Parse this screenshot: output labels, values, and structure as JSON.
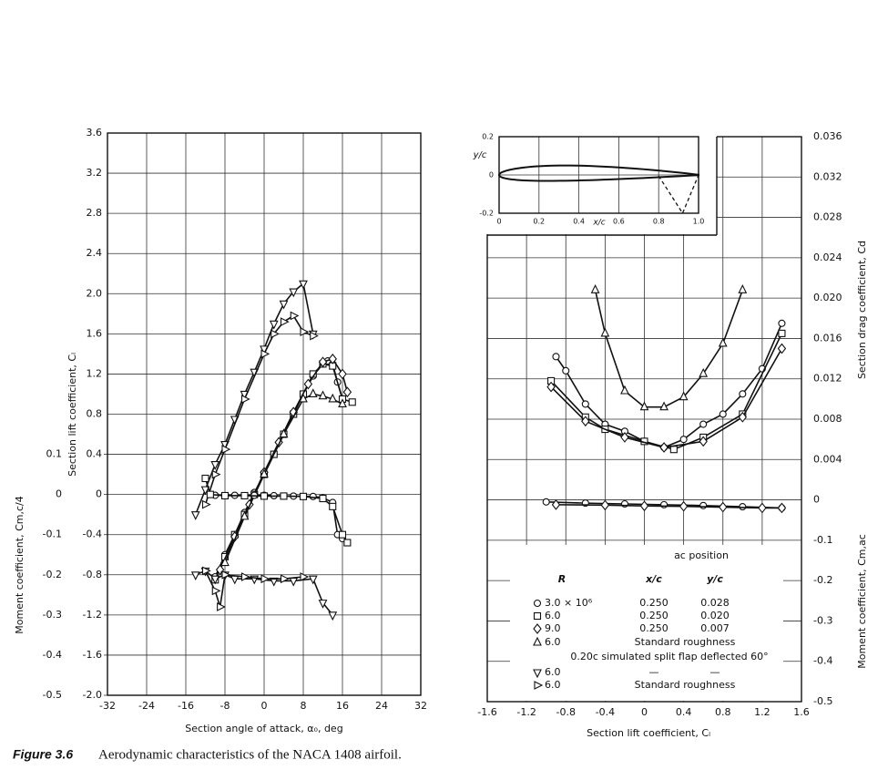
{
  "chart_data": [
    {
      "type": "line",
      "xlabel": "Section angle of attack, α₀, deg",
      "ylabel": "Section lift coefficient, Cₗ",
      "y2label": "Moment coefficient, Cm,c/4",
      "xlim": [
        -32,
        32
      ],
      "xticks": [
        -32,
        -24,
        -16,
        -8,
        0,
        8,
        16,
        24,
        32
      ],
      "ylim": [
        -2,
        3.6
      ],
      "yticks": [
        {
          "value": -2,
          "label": "-2.0"
        },
        -1.6,
        -1.2,
        -0.8,
        -0.4,
        0,
        0.4,
        0.8,
        1.2,
        1.6,
        {
          "value": 2,
          "label": "2.0"
        },
        2.4,
        2.8,
        3.2,
        3.6
      ],
      "y2lim": [
        -0.5,
        0.9
      ],
      "y2ticks": [
        0.1,
        0,
        -0.1,
        -0.2,
        -0.3,
        -0.4,
        -0.5
      ],
      "grid": true,
      "series": [
        {
          "marker": "circle",
          "color": "#111",
          "x": [
            -10,
            -8,
            -6,
            -4,
            -2,
            0,
            2,
            4,
            6,
            8,
            10,
            12,
            13,
            14,
            15,
            16
          ],
          "values": [
            -0.82,
            -0.6,
            -0.4,
            -0.18,
            0.02,
            0.2,
            0.4,
            0.6,
            0.8,
            1.0,
            1.18,
            1.3,
            1.33,
            1.3,
            1.12,
            0.95
          ]
        },
        {
          "marker": "square",
          "color": "#111",
          "x": [
            -10,
            -8,
            -6,
            -4,
            -2,
            0,
            2,
            4,
            6,
            8,
            10,
            12,
            14,
            16,
            18
          ],
          "values": [
            -0.85,
            -0.62,
            -0.4,
            -0.2,
            0,
            0.2,
            0.4,
            0.6,
            0.8,
            1.0,
            1.2,
            1.3,
            1.28,
            0.95,
            0.92
          ]
        },
        {
          "marker": "diamond",
          "color": "#111",
          "x": [
            -9,
            -6,
            -3,
            0,
            3,
            6,
            9,
            12,
            14,
            16,
            17
          ],
          "values": [
            -0.75,
            -0.42,
            -0.1,
            0.22,
            0.52,
            0.82,
            1.1,
            1.32,
            1.35,
            1.2,
            1.02
          ]
        },
        {
          "marker": "tri-up",
          "color": "#111",
          "x": [
            -8,
            -4,
            0,
            4,
            8,
            10,
            12,
            14,
            16
          ],
          "values": [
            -0.68,
            -0.22,
            0.2,
            0.6,
            0.95,
            1.0,
            0.98,
            0.95,
            0.9
          ]
        },
        {
          "marker": "tri-down",
          "color": "#111",
          "x": [
            -14,
            -12,
            -10,
            -8,
            -6,
            -4,
            -2,
            0,
            2,
            4,
            6,
            8,
            10
          ],
          "values": [
            -0.2,
            0.05,
            0.3,
            0.5,
            0.75,
            1.0,
            1.22,
            1.45,
            1.7,
            1.9,
            2.02,
            2.1,
            1.6
          ]
        },
        {
          "marker": "tri-right",
          "color": "#111",
          "x": [
            -12,
            -10,
            -8,
            -4,
            0,
            2,
            4,
            6,
            8,
            10
          ],
          "values": [
            -0.1,
            0.2,
            0.45,
            0.95,
            1.4,
            1.6,
            1.72,
            1.78,
            1.62,
            1.58
          ]
        },
        {
          "marker": "circle",
          "color": "#111",
          "axis": "y2",
          "x": [
            -10,
            -6,
            -2,
            0,
            2,
            6,
            10,
            12,
            14,
            15,
            16
          ],
          "values": [
            -0.002,
            -0.002,
            -0.002,
            -0.002,
            -0.003,
            -0.004,
            -0.005,
            -0.008,
            -0.02,
            -0.1,
            -0.11
          ]
        },
        {
          "marker": "square",
          "color": "#111",
          "axis": "y2",
          "x": [
            -12,
            -11,
            -8,
            -4,
            0,
            4,
            8,
            12,
            14,
            16,
            17
          ],
          "values": [
            0.04,
            0,
            -0.003,
            -0.003,
            -0.004,
            -0.004,
            -0.005,
            -0.01,
            -0.03,
            -0.1,
            -0.12
          ]
        },
        {
          "marker": "tri-down",
          "color": "#111",
          "axis": "y2",
          "x": [
            -14,
            -12,
            -10,
            -8,
            -6,
            -2,
            2,
            6,
            10,
            12,
            14
          ],
          "values": [
            -0.2,
            -0.19,
            -0.21,
            -0.2,
            -0.21,
            -0.21,
            -0.215,
            -0.215,
            -0.21,
            -0.27,
            -0.3
          ]
        },
        {
          "marker": "tri-right",
          "color": "#111",
          "axis": "y2",
          "x": [
            -12,
            -10,
            -9,
            -8,
            -4,
            0,
            4,
            8
          ],
          "values": [
            -0.19,
            -0.24,
            -0.28,
            -0.2,
            -0.205,
            -0.21,
            -0.21,
            -0.205
          ]
        }
      ]
    },
    {
      "type": "line",
      "xlabel": "Section lift coefficient, Cₗ",
      "ylabel": "Section drag coefficient, Cd",
      "y2label": "Moment coefficient, Cm,ac",
      "xlim": [
        -1.6,
        1.6
      ],
      "xticks": [
        -1.6,
        -1.2,
        -0.8,
        -0.4,
        0,
        0.4,
        0.8,
        1.2,
        1.6
      ],
      "ylim": [
        -0.02,
        0.036
      ],
      "yticks": [
        0,
        0.004,
        0.008,
        0.012,
        0.016,
        {
          "value": 0.02,
          "label": "0.020"
        },
        0.024,
        0.028,
        0.032,
        0.036
      ],
      "y2lim": [
        -0.5,
        0.9
      ],
      "y2ticks": [
        -0.1,
        -0.2,
        -0.3,
        -0.4,
        -0.5
      ],
      "grid": true,
      "series": [
        {
          "marker": "circle",
          "color": "#111",
          "x": [
            -0.9,
            -0.8,
            -0.6,
            -0.4,
            -0.2,
            0,
            0.2,
            0.4,
            0.6,
            0.8,
            1.0,
            1.2,
            1.4
          ],
          "values": [
            0.0142,
            0.0128,
            0.0095,
            0.0075,
            0.0068,
            0.0058,
            0.0052,
            0.006,
            0.0075,
            0.0085,
            0.0105,
            0.013,
            0.0175
          ]
        },
        {
          "marker": "square",
          "color": "#111",
          "x": [
            -0.95,
            -0.6,
            -0.4,
            0,
            0.3,
            0.6,
            1.0,
            1.4
          ],
          "values": [
            0.0118,
            0.0082,
            0.007,
            0.0058,
            0.005,
            0.0062,
            0.0085,
            0.0165
          ]
        },
        {
          "marker": "diamond",
          "color": "#111",
          "x": [
            -0.95,
            -0.6,
            -0.2,
            0.2,
            0.6,
            1.0,
            1.4
          ],
          "values": [
            0.0112,
            0.0078,
            0.0062,
            0.0052,
            0.0058,
            0.0082,
            0.015
          ]
        },
        {
          "marker": "tri-up",
          "color": "#111",
          "x": [
            -0.5,
            -0.4,
            -0.2,
            0,
            0.2,
            0.4,
            0.6,
            0.8,
            1.0
          ],
          "values": [
            0.0208,
            0.0165,
            0.0108,
            0.0092,
            0.0092,
            0.0102,
            0.0125,
            0.0155,
            0.0208
          ]
        },
        {
          "marker": "circle",
          "color": "#111",
          "axis": "y2",
          "x": [
            -1.0,
            -0.6,
            -0.2,
            0.2,
            0.6,
            1.0,
            1.4
          ],
          "values": [
            -0.005,
            -0.008,
            -0.01,
            -0.012,
            -0.014,
            -0.017,
            -0.02
          ]
        },
        {
          "marker": "diamond",
          "color": "#111",
          "axis": "y2",
          "x": [
            -0.9,
            -0.4,
            0,
            0.4,
            0.8,
            1.2,
            1.4
          ],
          "values": [
            -0.012,
            -0.013,
            -0.015,
            -0.016,
            -0.018,
            -0.02,
            -0.02
          ]
        }
      ]
    },
    {
      "type": "airfoil",
      "xlabel": "x/c",
      "ylabel": "y/c",
      "xlim": [
        0,
        1
      ],
      "xticks": [
        0,
        0.2,
        0.4,
        0.6,
        0.8,
        {
          "value": 1,
          "label": "1.0"
        }
      ],
      "ylim": [
        -0.2,
        0.2
      ],
      "yticks": [
        -0.2,
        0,
        0.2
      ],
      "grid": true
    }
  ],
  "legend": {
    "title": "ac position",
    "headers": [
      "R",
      "x/c",
      "y/c"
    ],
    "rows": [
      {
        "marker": "circle",
        "cells": [
          "3.0 × 10⁶",
          "0.250",
          "0.028"
        ]
      },
      {
        "marker": "square",
        "cells": [
          "6.0",
          "0.250",
          "0.020"
        ]
      },
      {
        "marker": "diamond",
        "cells": [
          "9.0",
          "0.250",
          "0.007"
        ]
      },
      {
        "marker": "tri-up",
        "cells": [
          "6.0",
          "Standard roughness"
        ]
      },
      {
        "cells": [
          "0.20c simulated split flap deflected 60°"
        ]
      },
      {
        "marker": "tri-down",
        "cells": [
          "6.0",
          "—",
          "—"
        ]
      },
      {
        "marker": "tri-right",
        "cells": [
          "6.0",
          "Standard roughness"
        ]
      }
    ]
  },
  "caption": {
    "label": "Figure 3.6",
    "text": "Aerodynamic characteristics of the NACA 1408 airfoil."
  }
}
